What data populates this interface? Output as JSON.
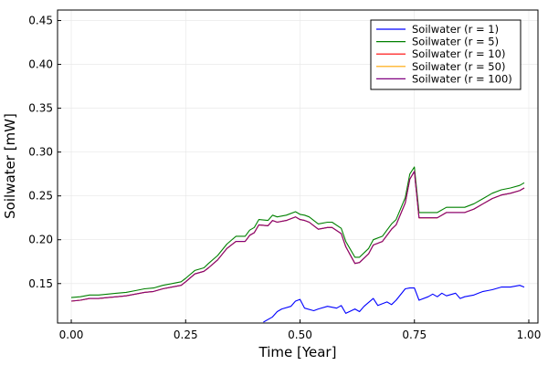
{
  "chart_data": {
    "type": "line",
    "title": "",
    "xlabel": "Time [Year]",
    "ylabel": "Soilwater [mW]",
    "xlim": [
      -0.03,
      1.02
    ],
    "ylim": [
      0.105,
      0.462
    ],
    "xticks": [
      0.0,
      0.25,
      0.5,
      0.75,
      1.0
    ],
    "xtick_labels": [
      "0.00",
      "0.25",
      "0.50",
      "0.75",
      "1.00"
    ],
    "yticks": [
      0.15,
      0.2,
      0.25,
      0.3,
      0.35,
      0.4,
      0.45
    ],
    "ytick_labels": [
      "0.15",
      "0.20",
      "0.25",
      "0.30",
      "0.35",
      "0.40",
      "0.45"
    ],
    "grid": true,
    "legend_position": "top-right",
    "series": [
      {
        "name": "Soilwater (r = 1)",
        "color": "#0000ff",
        "x": [
          0.42,
          0.44,
          0.45,
          0.46,
          0.48,
          0.49,
          0.5,
          0.51,
          0.53,
          0.54,
          0.56,
          0.58,
          0.59,
          0.6,
          0.62,
          0.63,
          0.64,
          0.66,
          0.67,
          0.69,
          0.7,
          0.71,
          0.73,
          0.74,
          0.75,
          0.76,
          0.78,
          0.79,
          0.8,
          0.81,
          0.82,
          0.84,
          0.85,
          0.86,
          0.88,
          0.89,
          0.9,
          0.91,
          0.92,
          0.94,
          0.95,
          0.96,
          0.98,
          0.99
        ],
        "y": [
          0.106,
          0.112,
          0.118,
          0.121,
          0.124,
          0.13,
          0.132,
          0.122,
          0.119,
          0.121,
          0.124,
          0.122,
          0.125,
          0.116,
          0.121,
          0.118,
          0.124,
          0.133,
          0.125,
          0.129,
          0.126,
          0.131,
          0.144,
          0.145,
          0.145,
          0.131,
          0.135,
          0.138,
          0.135,
          0.139,
          0.136,
          0.139,
          0.133,
          0.135,
          0.137,
          0.139,
          0.141,
          0.142,
          0.143,
          0.146,
          0.146,
          0.146,
          0.148,
          0.146
        ]
      },
      {
        "name": "Soilwater (r = 5)",
        "color": "#008000",
        "x": [
          0.0,
          0.02,
          0.04,
          0.06,
          0.08,
          0.1,
          0.12,
          0.14,
          0.16,
          0.18,
          0.2,
          0.22,
          0.24,
          0.25,
          0.27,
          0.29,
          0.3,
          0.32,
          0.34,
          0.36,
          0.38,
          0.39,
          0.4,
          0.41,
          0.43,
          0.44,
          0.45,
          0.47,
          0.49,
          0.5,
          0.51,
          0.52,
          0.54,
          0.56,
          0.57,
          0.59,
          0.6,
          0.62,
          0.63,
          0.65,
          0.66,
          0.68,
          0.7,
          0.71,
          0.73,
          0.74,
          0.75,
          0.76,
          0.78,
          0.8,
          0.82,
          0.84,
          0.86,
          0.88,
          0.9,
          0.92,
          0.94,
          0.96,
          0.98,
          0.99
        ],
        "y": [
          0.134,
          0.135,
          0.137,
          0.137,
          0.138,
          0.139,
          0.14,
          0.142,
          0.144,
          0.145,
          0.148,
          0.15,
          0.152,
          0.156,
          0.165,
          0.168,
          0.173,
          0.182,
          0.195,
          0.204,
          0.204,
          0.211,
          0.214,
          0.223,
          0.222,
          0.228,
          0.226,
          0.228,
          0.232,
          0.229,
          0.228,
          0.226,
          0.218,
          0.22,
          0.22,
          0.213,
          0.198,
          0.18,
          0.18,
          0.19,
          0.2,
          0.204,
          0.218,
          0.223,
          0.248,
          0.275,
          0.283,
          0.231,
          0.231,
          0.231,
          0.237,
          0.237,
          0.237,
          0.241,
          0.247,
          0.253,
          0.257,
          0.259,
          0.262,
          0.265
        ]
      },
      {
        "name": "Soilwater (r = 10)",
        "color": "#ff0000",
        "x": [
          0.0,
          0.02,
          0.04,
          0.06,
          0.08,
          0.1,
          0.12,
          0.14,
          0.16,
          0.18,
          0.2,
          0.22,
          0.24,
          0.25,
          0.27,
          0.29,
          0.3,
          0.32,
          0.34,
          0.36,
          0.38,
          0.39,
          0.4,
          0.41,
          0.43,
          0.44,
          0.45,
          0.47,
          0.49,
          0.5,
          0.51,
          0.52,
          0.54,
          0.56,
          0.57,
          0.59,
          0.6,
          0.62,
          0.63,
          0.65,
          0.66,
          0.68,
          0.7,
          0.71,
          0.73,
          0.74,
          0.75,
          0.76,
          0.78,
          0.8,
          0.82,
          0.84,
          0.86,
          0.88,
          0.9,
          0.92,
          0.94,
          0.96,
          0.98,
          0.99
        ],
        "y": [
          0.13,
          0.131,
          0.133,
          0.133,
          0.134,
          0.135,
          0.136,
          0.138,
          0.14,
          0.141,
          0.144,
          0.146,
          0.148,
          0.152,
          0.161,
          0.164,
          0.168,
          0.177,
          0.19,
          0.198,
          0.198,
          0.205,
          0.208,
          0.217,
          0.216,
          0.222,
          0.22,
          0.222,
          0.226,
          0.223,
          0.222,
          0.22,
          0.212,
          0.214,
          0.214,
          0.207,
          0.192,
          0.173,
          0.174,
          0.184,
          0.194,
          0.198,
          0.212,
          0.217,
          0.242,
          0.269,
          0.278,
          0.225,
          0.225,
          0.225,
          0.231,
          0.231,
          0.231,
          0.235,
          0.241,
          0.247,
          0.251,
          0.253,
          0.256,
          0.259
        ]
      },
      {
        "name": "Soilwater (r = 50)",
        "color": "#ffa500",
        "x": [
          0.0,
          0.02,
          0.04,
          0.06,
          0.08,
          0.1,
          0.12,
          0.14,
          0.16,
          0.18,
          0.2,
          0.22,
          0.24,
          0.25,
          0.27,
          0.29,
          0.3,
          0.32,
          0.34,
          0.36,
          0.38,
          0.39,
          0.4,
          0.41,
          0.43,
          0.44,
          0.45,
          0.47,
          0.49,
          0.5,
          0.51,
          0.52,
          0.54,
          0.56,
          0.57,
          0.59,
          0.6,
          0.62,
          0.63,
          0.65,
          0.66,
          0.68,
          0.7,
          0.71,
          0.73,
          0.74,
          0.75,
          0.76,
          0.78,
          0.8,
          0.82,
          0.84,
          0.86,
          0.88,
          0.9,
          0.92,
          0.94,
          0.96,
          0.98,
          0.99
        ],
        "y": [
          0.13,
          0.131,
          0.133,
          0.133,
          0.134,
          0.135,
          0.136,
          0.138,
          0.14,
          0.141,
          0.144,
          0.146,
          0.148,
          0.152,
          0.161,
          0.164,
          0.168,
          0.177,
          0.19,
          0.198,
          0.198,
          0.205,
          0.208,
          0.217,
          0.216,
          0.222,
          0.22,
          0.222,
          0.226,
          0.223,
          0.222,
          0.22,
          0.212,
          0.214,
          0.214,
          0.207,
          0.192,
          0.173,
          0.174,
          0.184,
          0.194,
          0.198,
          0.212,
          0.217,
          0.242,
          0.269,
          0.278,
          0.225,
          0.225,
          0.225,
          0.231,
          0.231,
          0.231,
          0.235,
          0.241,
          0.247,
          0.251,
          0.253,
          0.256,
          0.259
        ]
      },
      {
        "name": "Soilwater (r = 100)",
        "color": "#800080",
        "x": [
          0.0,
          0.02,
          0.04,
          0.06,
          0.08,
          0.1,
          0.12,
          0.14,
          0.16,
          0.18,
          0.2,
          0.22,
          0.24,
          0.25,
          0.27,
          0.29,
          0.3,
          0.32,
          0.34,
          0.36,
          0.38,
          0.39,
          0.4,
          0.41,
          0.43,
          0.44,
          0.45,
          0.47,
          0.49,
          0.5,
          0.51,
          0.52,
          0.54,
          0.56,
          0.57,
          0.59,
          0.6,
          0.62,
          0.63,
          0.65,
          0.66,
          0.68,
          0.7,
          0.71,
          0.73,
          0.74,
          0.75,
          0.76,
          0.78,
          0.8,
          0.82,
          0.84,
          0.86,
          0.88,
          0.9,
          0.92,
          0.94,
          0.96,
          0.98,
          0.99
        ],
        "y": [
          0.13,
          0.131,
          0.133,
          0.133,
          0.134,
          0.135,
          0.136,
          0.138,
          0.14,
          0.141,
          0.144,
          0.146,
          0.148,
          0.152,
          0.161,
          0.164,
          0.168,
          0.177,
          0.19,
          0.198,
          0.198,
          0.205,
          0.208,
          0.217,
          0.216,
          0.222,
          0.22,
          0.222,
          0.226,
          0.223,
          0.222,
          0.22,
          0.212,
          0.214,
          0.214,
          0.207,
          0.192,
          0.173,
          0.174,
          0.184,
          0.194,
          0.198,
          0.212,
          0.217,
          0.242,
          0.269,
          0.278,
          0.225,
          0.225,
          0.225,
          0.231,
          0.231,
          0.231,
          0.235,
          0.241,
          0.247,
          0.251,
          0.253,
          0.256,
          0.259
        ]
      }
    ]
  }
}
